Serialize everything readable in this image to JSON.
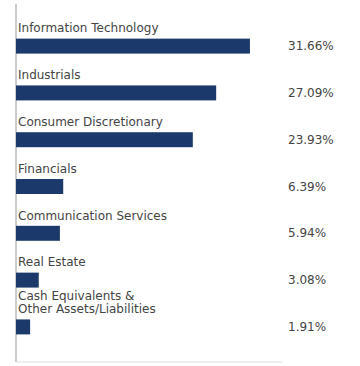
{
  "chart_data": {
    "type": "bar",
    "orientation": "horizontal",
    "categories": [
      "Cash Equivalents &\nOther Assets/Liabilities",
      "Real Estate",
      "Communication Services",
      "Financials",
      "Consumer Discretionary",
      "Industrials",
      "Information Technology"
    ],
    "values": [
      1.91,
      3.08,
      5.94,
      6.39,
      23.93,
      27.09,
      31.66
    ],
    "value_labels": [
      "1.91%",
      "3.08%",
      "5.94%",
      "6.39%",
      "23.93%",
      "27.09%",
      "31.66%"
    ],
    "color": "#1b3a6b",
    "xlim": [
      0,
      36
    ],
    "data_labels": true,
    "tick_labels": false,
    "grid": false
  }
}
